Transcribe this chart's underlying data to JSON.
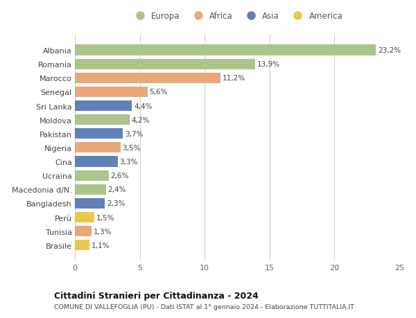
{
  "countries": [
    "Albania",
    "Romania",
    "Marocco",
    "Senegal",
    "Sri Lanka",
    "Moldova",
    "Pakistan",
    "Nigeria",
    "Cina",
    "Ucraina",
    "Macedonia d/N.",
    "Bangladesh",
    "Perù",
    "Tunisia",
    "Brasile"
  ],
  "values": [
    23.2,
    13.9,
    11.2,
    5.6,
    4.4,
    4.2,
    3.7,
    3.5,
    3.3,
    2.6,
    2.4,
    2.3,
    1.5,
    1.3,
    1.1
  ],
  "labels": [
    "23,2%",
    "13,9%",
    "11,2%",
    "5,6%",
    "4,4%",
    "4,2%",
    "3,7%",
    "3,5%",
    "3,3%",
    "2,6%",
    "2,4%",
    "2,3%",
    "1,5%",
    "1,3%",
    "1,1%"
  ],
  "continents": [
    "Europa",
    "Europa",
    "Africa",
    "Africa",
    "Asia",
    "Europa",
    "Asia",
    "Africa",
    "Asia",
    "Europa",
    "Europa",
    "Asia",
    "America",
    "Africa",
    "America"
  ],
  "continent_colors": {
    "Europa": "#aac48a",
    "Africa": "#e8a878",
    "Asia": "#6080b8",
    "America": "#e8c850"
  },
  "legend_order": [
    "Europa",
    "Africa",
    "Asia",
    "America"
  ],
  "title": "Cittadini Stranieri per Cittadinanza - 2024",
  "subtitle": "COMUNE DI VALLEFOGLIA (PU) - Dati ISTAT al 1° gennaio 2024 - Elaborazione TUTTITALIA.IT",
  "xlim": [
    0,
    25
  ],
  "xticks": [
    0,
    5,
    10,
    15,
    20,
    25
  ],
  "bg_color": "#ffffff",
  "grid_color": "#d0d0d0",
  "bar_height": 0.75
}
